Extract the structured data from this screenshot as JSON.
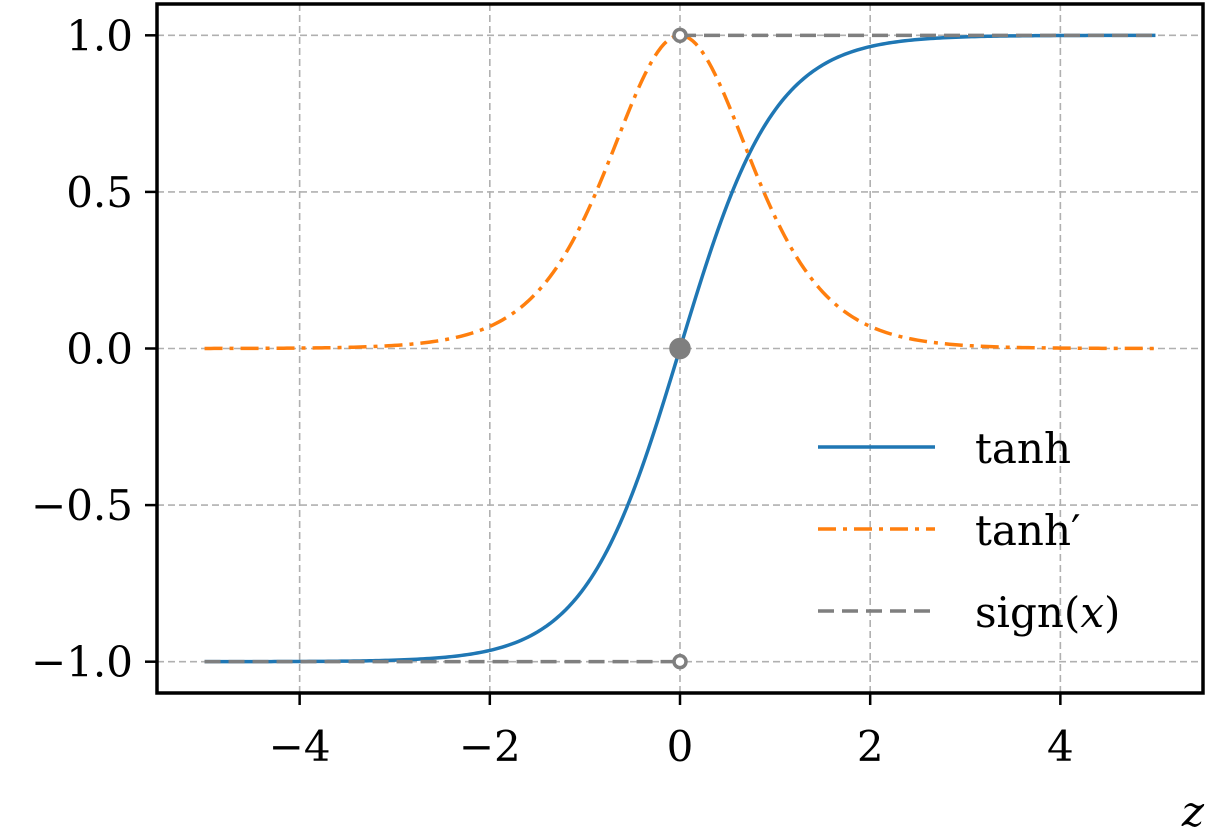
{
  "chart_data": {
    "type": "line",
    "xlabel": "z",
    "ylabel": "",
    "title": "",
    "xlim": [
      -5.5,
      5.5
    ],
    "ylim": [
      -1.1,
      1.1
    ],
    "xticks": [
      -4,
      -2,
      0,
      2,
      4
    ],
    "xtick_labels": [
      "−4",
      "−2",
      "0",
      "2",
      "4"
    ],
    "yticks": [
      -1.0,
      -0.5,
      0.0,
      0.5,
      1.0
    ],
    "ytick_labels": [
      "−1.0",
      "−0.5",
      "0.0",
      "0.5",
      "1.0"
    ],
    "grid": true,
    "legend_position": "lower-right",
    "series": [
      {
        "name": "tanh",
        "style": "solid",
        "color": "#1f77b4",
        "x": [
          -5,
          -4.5,
          -4,
          -3.5,
          -3,
          -2.5,
          -2,
          -1.75,
          -1.5,
          -1.25,
          -1,
          -0.75,
          -0.5,
          -0.25,
          0,
          0.25,
          0.5,
          0.75,
          1,
          1.25,
          1.5,
          1.75,
          2,
          2.5,
          3,
          3.5,
          4,
          4.5,
          5
        ],
        "y": [
          -0.9999,
          -0.9998,
          -0.9993,
          -0.9982,
          -0.9951,
          -0.9866,
          -0.964,
          -0.9414,
          -0.9051,
          -0.8483,
          -0.7616,
          -0.6351,
          -0.4621,
          -0.2449,
          0.0,
          0.2449,
          0.4621,
          0.6351,
          0.7616,
          0.8483,
          0.9051,
          0.9414,
          0.964,
          0.9866,
          0.9951,
          0.9982,
          0.9993,
          0.9998,
          0.9999
        ]
      },
      {
        "name": "tanh′",
        "style": "dashdot",
        "color": "#ff7f0e",
        "x": [
          -5,
          -4.5,
          -4,
          -3.5,
          -3,
          -2.5,
          -2,
          -1.75,
          -1.5,
          -1.25,
          -1,
          -0.75,
          -0.5,
          -0.25,
          0,
          0.25,
          0.5,
          0.75,
          1,
          1.25,
          1.5,
          1.75,
          2,
          2.5,
          3,
          3.5,
          4,
          4.5,
          5
        ],
        "y": [
          0.0002,
          0.0005,
          0.0013,
          0.0036,
          0.0099,
          0.0266,
          0.0707,
          0.1138,
          0.1807,
          0.2805,
          0.42,
          0.5966,
          0.7864,
          0.94,
          1.0,
          0.94,
          0.7864,
          0.5966,
          0.42,
          0.2805,
          0.1807,
          0.1138,
          0.0707,
          0.0266,
          0.0099,
          0.0036,
          0.0013,
          0.0005,
          0.0002
        ]
      },
      {
        "name": "sign(x)",
        "style": "dashed",
        "color": "#7f7f7f",
        "segments": [
          {
            "x": [
              -5,
              0
            ],
            "y": [
              -1,
              -1
            ]
          },
          {
            "x": [
              0,
              5
            ],
            "y": [
              1,
              1
            ]
          }
        ],
        "points": [
          {
            "x": 0,
            "y": 1,
            "filled": false
          },
          {
            "x": 0,
            "y": 0,
            "filled": true
          },
          {
            "x": 0,
            "y": -1,
            "filled": false
          }
        ]
      }
    ],
    "legend_labels": {
      "tanh": "tanh",
      "tanh_prime": "tanh′",
      "sign_prefix": "sign(",
      "sign_var": "x",
      "sign_suffix": ")"
    }
  }
}
